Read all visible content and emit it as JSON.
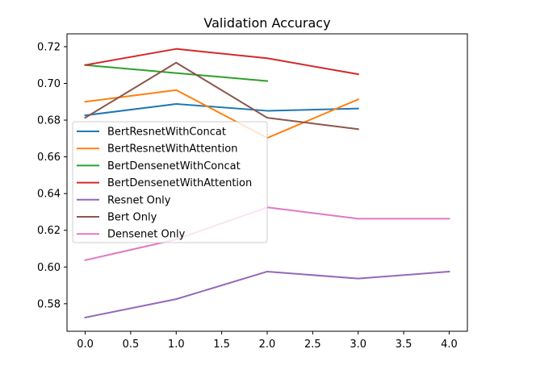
{
  "chart_data": {
    "type": "line",
    "title": "Validation Accuracy",
    "xlabel": "",
    "ylabel": "",
    "xlim": [
      -0.2,
      4.2
    ],
    "ylim": [
      0.565,
      0.727
    ],
    "xticks": [
      0.0,
      0.5,
      1.0,
      1.5,
      2.0,
      2.5,
      3.0,
      3.5,
      4.0
    ],
    "xtick_labels": [
      "0.0",
      "0.5",
      "1.0",
      "1.5",
      "2.0",
      "2.5",
      "3.0",
      "3.5",
      "4.0"
    ],
    "yticks": [
      0.58,
      0.6,
      0.62,
      0.64,
      0.66,
      0.68,
      0.7,
      0.72
    ],
    "ytick_labels": [
      "0.58",
      "0.60",
      "0.62",
      "0.64",
      "0.66",
      "0.68",
      "0.70",
      "0.72"
    ],
    "grid": false,
    "legend_position": "center-left",
    "series": [
      {
        "name": "BertResnetWithConcat",
        "color": "#1f77b4",
        "x": [
          0,
          1,
          2,
          3
        ],
        "y": [
          0.6826,
          0.6888,
          0.6851,
          0.6863
        ]
      },
      {
        "name": "BertResnetWithAttention",
        "color": "#ff7f0e",
        "x": [
          0,
          1,
          2,
          3
        ],
        "y": [
          0.69,
          0.6964,
          0.6703,
          0.6913
        ]
      },
      {
        "name": "BertDensenetWithConcat",
        "color": "#2ca02c",
        "x": [
          0,
          2
        ],
        "y": [
          0.71,
          0.7013
        ]
      },
      {
        "name": "BertDensenetWithAttention",
        "color": "#d62728",
        "x": [
          0,
          1,
          2,
          3
        ],
        "y": [
          0.71,
          0.7188,
          0.7137,
          0.705
        ]
      },
      {
        "name": "Resnet Only",
        "color": "#9467bd",
        "x": [
          0,
          1,
          2,
          3,
          4
        ],
        "y": [
          0.5725,
          0.5825,
          0.5975,
          0.5937,
          0.5975
        ]
      },
      {
        "name": "Bert Only",
        "color": "#8c564b",
        "x": [
          0,
          1,
          2,
          3
        ],
        "y": [
          0.6813,
          0.7113,
          0.6813,
          0.6751
        ]
      },
      {
        "name": "Densenet Only",
        "color": "#e377c2",
        "x": [
          0,
          1,
          2,
          3,
          4
        ],
        "y": [
          0.6037,
          0.615,
          0.6325,
          0.6263,
          0.6263
        ]
      }
    ]
  }
}
